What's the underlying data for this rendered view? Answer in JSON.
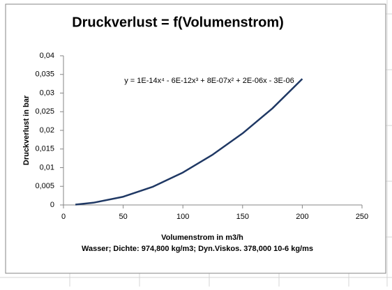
{
  "chart_data": {
    "type": "line",
    "title": "Druckverlust = f(Volumenstrom)",
    "annotation": "y = 1E-14x⁴ - 6E-12x³ + 8E-07x² + 2E-06x - 3E-06",
    "x_label": "Volumenstrom in m3/h",
    "subtitle": "Wasser; Dichte:  974,800 kg/m3; Dyn.Viskos.  378,000 10-6 kg/ms",
    "y_label": "Druckverlust in bar",
    "x": [
      10,
      25,
      50,
      75,
      100,
      125,
      150,
      175,
      200
    ],
    "series": [
      {
        "color": "#1f3864",
        "values": [
          0.0001,
          0.0006,
          0.0022,
          0.0049,
          0.0087,
          0.0135,
          0.0192,
          0.0259,
          0.0338
        ]
      }
    ],
    "xlim": [
      0,
      250
    ],
    "xticks": [
      0,
      50,
      100,
      150,
      200,
      250
    ],
    "ylim": [
      0,
      0.04
    ],
    "yticks": [
      0,
      {
        "value": 0.005,
        "label": "0,005"
      },
      {
        "value": 0.01,
        "label": "0,01"
      },
      {
        "value": 0.015,
        "label": "0,015"
      },
      {
        "value": 0.02,
        "label": "0,02"
      },
      {
        "value": 0.025,
        "label": "0,025"
      },
      {
        "value": 0.03,
        "label": "0,03"
      },
      {
        "value": 0.035,
        "label": "0,035"
      },
      {
        "value": 0.04,
        "label": "0,04"
      }
    ],
    "grid": false
  }
}
